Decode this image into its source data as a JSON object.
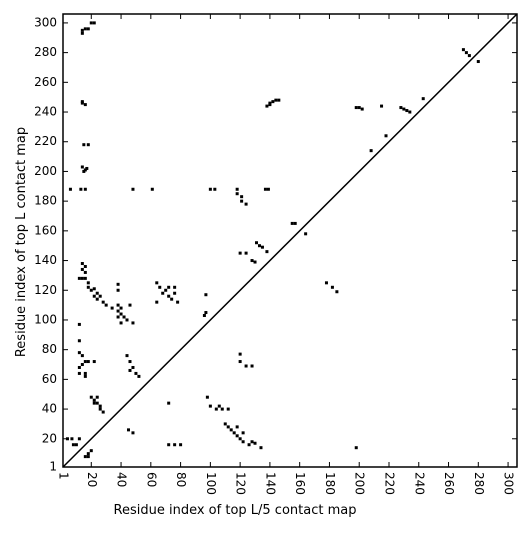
{
  "chart_data": {
    "type": "scatter",
    "xlabel": "Residue index of top L/5 contact map",
    "ylabel": "Residue index of top L contact map",
    "xlim": [
      1,
      306
    ],
    "ylim": [
      1,
      306
    ],
    "xticks": [
      1,
      20,
      40,
      60,
      80,
      100,
      120,
      140,
      160,
      180,
      200,
      220,
      240,
      260,
      280,
      300
    ],
    "yticks": [
      1,
      20,
      40,
      60,
      80,
      100,
      120,
      140,
      160,
      180,
      200,
      220,
      240,
      260,
      280,
      300
    ],
    "color": "#000000",
    "x": [
      14,
      16,
      18,
      20,
      22,
      14,
      14,
      16,
      14,
      15,
      18,
      14,
      16,
      15,
      17,
      6,
      13,
      16,
      48,
      61,
      100,
      103,
      118,
      118,
      121,
      121,
      124,
      137,
      139,
      14,
      16,
      14,
      16,
      12,
      14,
      16,
      18,
      18,
      20,
      22,
      24,
      22,
      24,
      26,
      28,
      30,
      34,
      38,
      38,
      38,
      40,
      38,
      40,
      38,
      42,
      40,
      44,
      48,
      46,
      64,
      66,
      68,
      70,
      72,
      74,
      76,
      78,
      72,
      76,
      64,
      120,
      124,
      128,
      131,
      133,
      135,
      138,
      130,
      12,
      12,
      12,
      14,
      16,
      14,
      12,
      12,
      16,
      18,
      22,
      16,
      44,
      46,
      48,
      46,
      50,
      52,
      97,
      97,
      96,
      120,
      120,
      124,
      128,
      138,
      140,
      142,
      144,
      146,
      140,
      155,
      157,
      164,
      178,
      182,
      185,
      198,
      200,
      202,
      215,
      228,
      230,
      232,
      234,
      243,
      270,
      272,
      274,
      280,
      208,
      218,
      4,
      7,
      8,
      10,
      12,
      16,
      18,
      18,
      20,
      20,
      22,
      24,
      24,
      26,
      26,
      28,
      22,
      45,
      48,
      72,
      72,
      76,
      80,
      98,
      100,
      104,
      106,
      108,
      110,
      112,
      114,
      116,
      118,
      120,
      122,
      126,
      128,
      134,
      112,
      118,
      122,
      130,
      198
    ],
    "y": [
      295,
      296,
      296,
      300,
      300,
      293,
      247,
      245,
      246,
      218,
      218,
      203,
      201,
      200,
      202,
      188,
      188,
      188,
      188,
      188,
      188,
      188,
      188,
      185,
      183,
      180,
      178,
      188,
      188,
      138,
      136,
      134,
      132,
      128,
      128,
      128,
      125,
      122,
      120,
      121,
      118,
      116,
      114,
      116,
      112,
      110,
      108,
      124,
      120,
      110,
      108,
      106,
      104,
      102,
      102,
      98,
      100,
      98,
      110,
      125,
      122,
      118,
      120,
      116,
      114,
      118,
      112,
      122,
      122,
      112,
      145,
      145,
      140,
      152,
      150,
      149,
      146,
      139,
      97,
      86,
      78,
      76,
      72,
      70,
      68,
      64,
      64,
      72,
      72,
      62,
      76,
      72,
      68,
      66,
      64,
      62,
      117,
      105,
      103,
      77,
      72,
      69,
      69,
      244,
      246,
      247,
      248,
      248,
      245,
      165,
      165,
      158,
      125,
      122,
      119,
      243,
      243,
      242,
      244,
      243,
      242,
      241,
      240,
      249,
      282,
      280,
      278,
      274,
      214,
      224,
      20,
      20,
      16,
      16,
      20,
      8,
      8,
      10,
      12,
      48,
      46,
      48,
      44,
      42,
      40,
      38,
      44,
      26,
      24,
      44,
      16,
      16,
      16,
      48,
      42,
      40,
      42,
      40,
      30,
      28,
      26,
      24,
      22,
      20,
      18,
      16,
      18,
      14,
      40,
      28,
      24,
      17,
      14
    ]
  }
}
